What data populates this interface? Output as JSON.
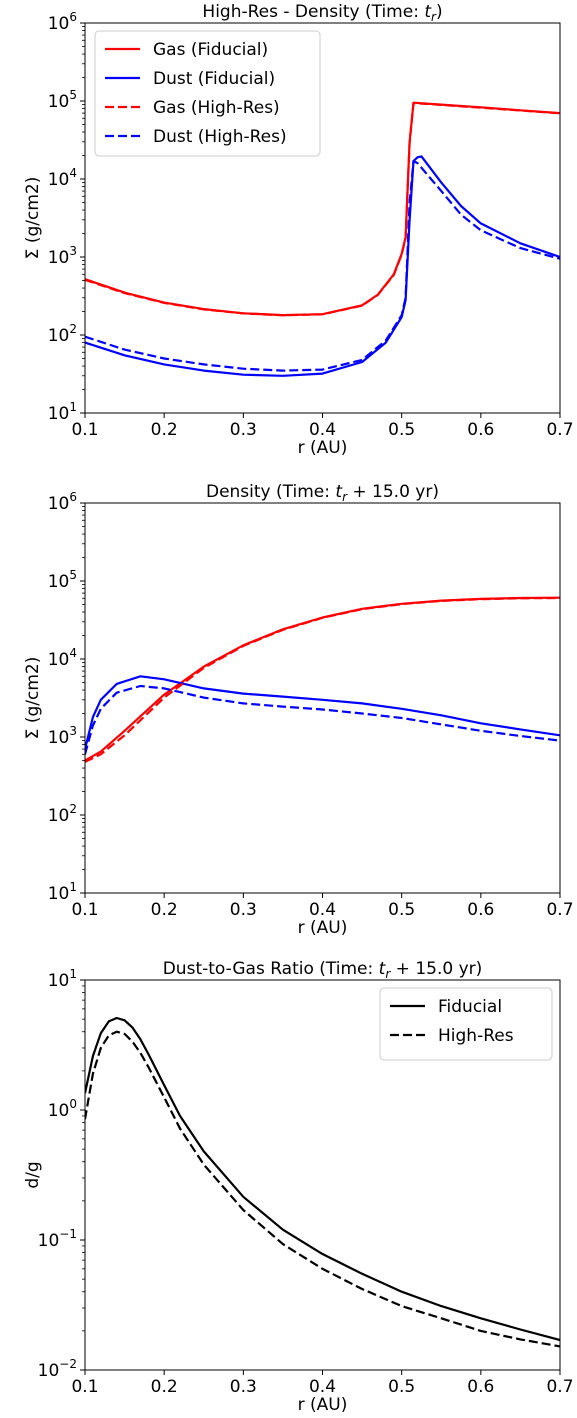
{
  "chart_data": [
    {
      "type": "line",
      "title": "High-Res - Density (Time: t_r)",
      "title_prefix": "High-Res - Density (Time: ",
      "title_math": "t",
      "title_sub": "r",
      "title_suffix": ")",
      "xlabel": "r (AU)",
      "ylabel": "Σ (g/cm2)",
      "xlim": [
        0.1,
        0.7
      ],
      "ylim": [
        10,
        1000000
      ],
      "yscale": "log",
      "x_ticks": [
        "0.1",
        "0.2",
        "0.3",
        "0.4",
        "0.5",
        "0.6",
        "0.7"
      ],
      "y_ticks": [
        {
          "base": "10",
          "exp": "1"
        },
        {
          "base": "10",
          "exp": "2"
        },
        {
          "base": "10",
          "exp": "3"
        },
        {
          "base": "10",
          "exp": "4"
        },
        {
          "base": "10",
          "exp": "5"
        },
        {
          "base": "10",
          "exp": "6"
        }
      ],
      "grid": false,
      "legend_position": "top-left",
      "series": [
        {
          "name": "Gas (Fiducial)",
          "color": "#ff0000",
          "dash": "solid",
          "x": [
            0.1,
            0.15,
            0.2,
            0.25,
            0.3,
            0.35,
            0.4,
            0.45,
            0.47,
            0.49,
            0.5,
            0.505,
            0.51,
            0.515,
            0.55,
            0.6,
            0.65,
            0.7
          ],
          "y": [
            520,
            350,
            260,
            215,
            190,
            180,
            185,
            240,
            330,
            600,
            1100,
            1800,
            30000,
            95000,
            90000,
            83000,
            76000,
            70000
          ]
        },
        {
          "name": "Dust (Fiducial)",
          "color": "#0000ff",
          "dash": "solid",
          "x": [
            0.1,
            0.15,
            0.2,
            0.25,
            0.3,
            0.35,
            0.4,
            0.45,
            0.48,
            0.5,
            0.505,
            0.51,
            0.515,
            0.52,
            0.525,
            0.55,
            0.575,
            0.6,
            0.65,
            0.7
          ],
          "y": [
            80,
            55,
            42,
            35,
            31,
            30,
            32,
            45,
            80,
            170,
            280,
            3000,
            17000,
            19000,
            19500,
            9000,
            4500,
            2700,
            1500,
            1000
          ]
        },
        {
          "name": "Gas (High-Res)",
          "color": "#ff0000",
          "dash": "dashed",
          "x": [
            0.1,
            0.15,
            0.2,
            0.25,
            0.3,
            0.35,
            0.4,
            0.45,
            0.47,
            0.49,
            0.5,
            0.505,
            0.51,
            0.515,
            0.55,
            0.6,
            0.65,
            0.7
          ],
          "y": [
            510,
            345,
            258,
            213,
            189,
            179,
            184,
            238,
            328,
            590,
            1080,
            1750,
            29000,
            94000,
            89000,
            82000,
            75500,
            69500
          ]
        },
        {
          "name": "Dust (High-Res)",
          "color": "#0000ff",
          "dash": "dashed",
          "x": [
            0.1,
            0.15,
            0.2,
            0.25,
            0.3,
            0.35,
            0.4,
            0.45,
            0.48,
            0.5,
            0.505,
            0.51,
            0.515,
            0.52,
            0.55,
            0.575,
            0.6,
            0.65,
            0.7
          ],
          "y": [
            95,
            65,
            50,
            42,
            37,
            35,
            36,
            48,
            85,
            180,
            300,
            5000,
            17000,
            16000,
            7000,
            3500,
            2200,
            1300,
            950
          ]
        }
      ]
    },
    {
      "type": "line",
      "title": "Density  (Time: t_r + 15.0 yr)",
      "title_prefix": "Density  (Time: ",
      "title_math": "t",
      "title_sub": "r",
      "title_suffix": " + 15.0 yr)",
      "xlabel": "r (AU)",
      "ylabel": "Σ (g/cm2)",
      "xlim": [
        0.1,
        0.7
      ],
      "ylim": [
        10,
        1000000
      ],
      "yscale": "log",
      "x_ticks": [
        "0.1",
        "0.2",
        "0.3",
        "0.4",
        "0.5",
        "0.6",
        "0.7"
      ],
      "y_ticks": [
        {
          "base": "10",
          "exp": "1"
        },
        {
          "base": "10",
          "exp": "2"
        },
        {
          "base": "10",
          "exp": "3"
        },
        {
          "base": "10",
          "exp": "4"
        },
        {
          "base": "10",
          "exp": "5"
        },
        {
          "base": "10",
          "exp": "6"
        }
      ],
      "grid": false,
      "series": [
        {
          "color": "#ff0000",
          "dash": "solid",
          "x": [
            0.1,
            0.12,
            0.15,
            0.2,
            0.25,
            0.3,
            0.35,
            0.4,
            0.45,
            0.5,
            0.55,
            0.6,
            0.65,
            0.7
          ],
          "y": [
            500,
            650,
            1200,
            3500,
            8000,
            15000,
            24000,
            34000,
            44000,
            51000,
            56000,
            59000,
            60500,
            61000
          ]
        },
        {
          "color": "#0000ff",
          "dash": "solid",
          "x": [
            0.1,
            0.11,
            0.12,
            0.14,
            0.17,
            0.2,
            0.25,
            0.3,
            0.35,
            0.4,
            0.45,
            0.5,
            0.55,
            0.6,
            0.65,
            0.7
          ],
          "y": [
            700,
            1800,
            3000,
            4800,
            6000,
            5500,
            4200,
            3600,
            3300,
            3000,
            2700,
            2300,
            1900,
            1500,
            1250,
            1050
          ]
        },
        {
          "color": "#ff0000",
          "dash": "dashed",
          "x": [
            0.1,
            0.12,
            0.15,
            0.2,
            0.25,
            0.3,
            0.35,
            0.4,
            0.45,
            0.5,
            0.55,
            0.6,
            0.65,
            0.7
          ],
          "y": [
            480,
            600,
            1050,
            3200,
            7700,
            14700,
            23700,
            33700,
            43500,
            50500,
            55500,
            58500,
            60000,
            60500
          ]
        },
        {
          "color": "#0000ff",
          "dash": "dashed",
          "x": [
            0.1,
            0.11,
            0.12,
            0.14,
            0.17,
            0.2,
            0.25,
            0.3,
            0.35,
            0.4,
            0.45,
            0.5,
            0.55,
            0.6,
            0.65,
            0.7
          ],
          "y": [
            600,
            1400,
            2300,
            3700,
            4500,
            4200,
            3200,
            2700,
            2450,
            2250,
            2000,
            1750,
            1450,
            1200,
            1030,
            900
          ]
        }
      ]
    },
    {
      "type": "line",
      "title": "Dust-to-Gas Ratio (Time: t_r + 15.0 yr)",
      "title_prefix": "Dust-to-Gas Ratio (Time: ",
      "title_math": "t",
      "title_sub": "r",
      "title_suffix": " + 15.0 yr)",
      "xlabel": "r (AU)",
      "ylabel": "d/g",
      "xlim": [
        0.1,
        0.7
      ],
      "ylim": [
        0.01,
        10
      ],
      "yscale": "log",
      "x_ticks": [
        "0.1",
        "0.2",
        "0.3",
        "0.4",
        "0.5",
        "0.6",
        "0.7"
      ],
      "y_ticks": [
        {
          "base": "10",
          "exp": "−2"
        },
        {
          "base": "10",
          "exp": "−1"
        },
        {
          "base": "10",
          "exp": "0"
        },
        {
          "base": "10",
          "exp": "1"
        }
      ],
      "grid": false,
      "legend_position": "top-right",
      "series": [
        {
          "name": "Fiducial",
          "color": "#000000",
          "dash": "solid",
          "x": [
            0.1,
            0.11,
            0.12,
            0.13,
            0.14,
            0.15,
            0.16,
            0.17,
            0.18,
            0.2,
            0.22,
            0.25,
            0.3,
            0.35,
            0.4,
            0.45,
            0.5,
            0.55,
            0.6,
            0.65,
            0.7
          ],
          "y": [
            1.35,
            2.6,
            3.9,
            4.8,
            5.1,
            4.9,
            4.3,
            3.5,
            2.7,
            1.55,
            0.9,
            0.48,
            0.215,
            0.12,
            0.078,
            0.055,
            0.04,
            0.031,
            0.025,
            0.0205,
            0.017
          ]
        },
        {
          "name": "High-Res",
          "color": "#000000",
          "dash": "dashed",
          "x": [
            0.1,
            0.11,
            0.12,
            0.13,
            0.14,
            0.15,
            0.16,
            0.17,
            0.18,
            0.2,
            0.22,
            0.25,
            0.3,
            0.35,
            0.4,
            0.45,
            0.5,
            0.55,
            0.6,
            0.65,
            0.7
          ],
          "y": [
            0.85,
            1.9,
            3.0,
            3.75,
            4.0,
            3.85,
            3.35,
            2.75,
            2.15,
            1.25,
            0.72,
            0.38,
            0.17,
            0.093,
            0.06,
            0.042,
            0.031,
            0.025,
            0.02,
            0.0172,
            0.0152
          ]
        }
      ]
    }
  ]
}
